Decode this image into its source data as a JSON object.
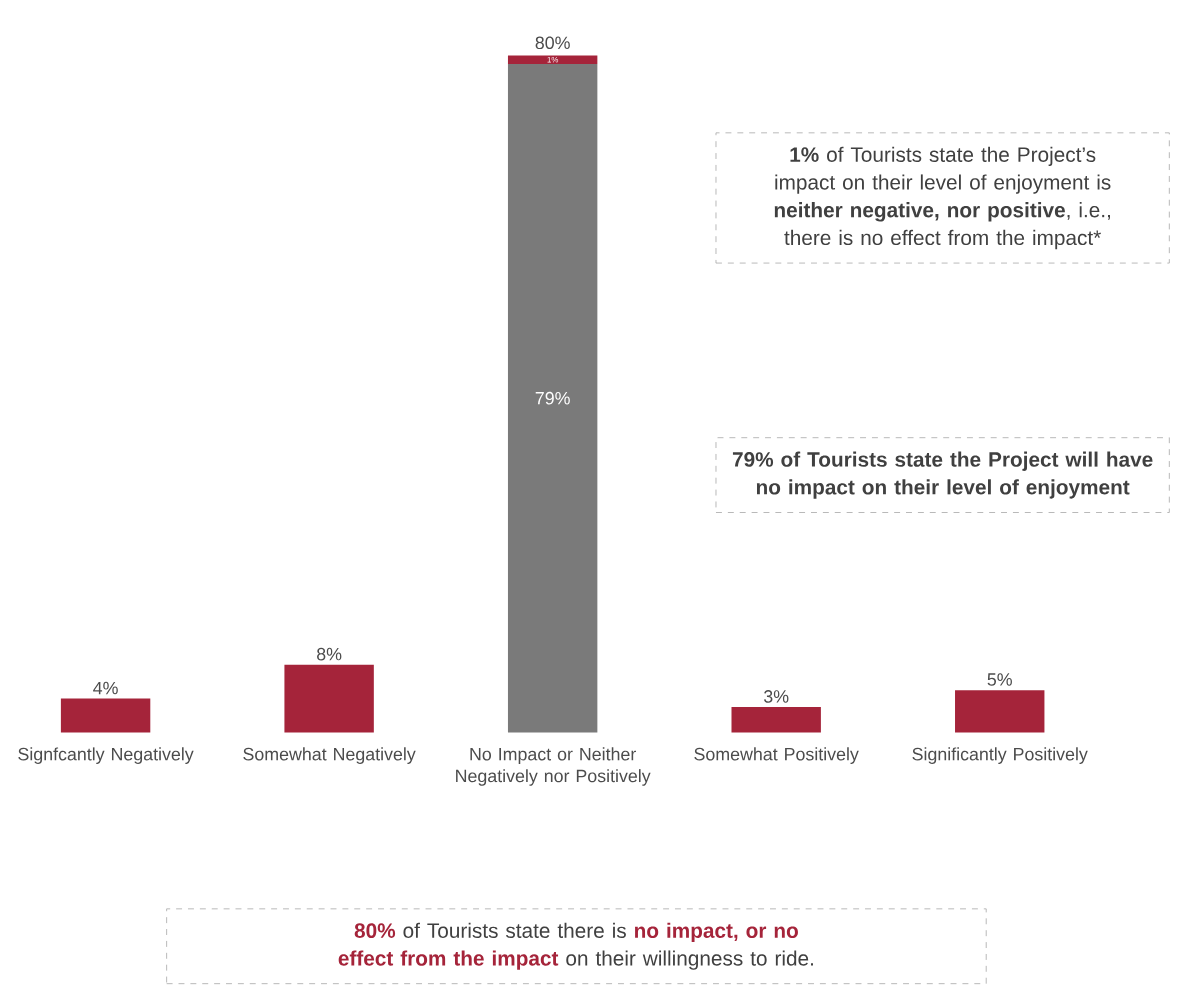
{
  "chart_data": {
    "type": "bar",
    "stacked": true,
    "categories": [
      "Signfcantly Negatively",
      "Somewhat Negatively",
      "No Impact or Neither Negatively nor Positively",
      "Somewhat Positively",
      "Significantly Positively"
    ],
    "series": [
      {
        "color": "#7a7a7a",
        "values": [
          null,
          null,
          79,
          null,
          null
        ],
        "value_labels": [
          null,
          null,
          "79%",
          null,
          null
        ]
      },
      {
        "color": "#a5243a",
        "values": [
          4,
          8,
          1,
          3,
          5
        ],
        "value_labels": [
          "4%",
          "8%",
          "1%",
          "3%",
          "5%"
        ]
      }
    ],
    "totals": [
      null,
      null,
      "80%",
      null,
      null
    ],
    "annotations": [
      "**1%** of Tourists state the Project’s impact on their level of enjoyment is **neither negative, nor positive**, i.e., there is no effect from the impact*",
      "**79% of Tourists state the Project will have no impact on their level of enjoyment**",
      "**80%** of Tourists state there is **no impact, or no effect from the impact** on their willingness to ride."
    ]
  }
}
